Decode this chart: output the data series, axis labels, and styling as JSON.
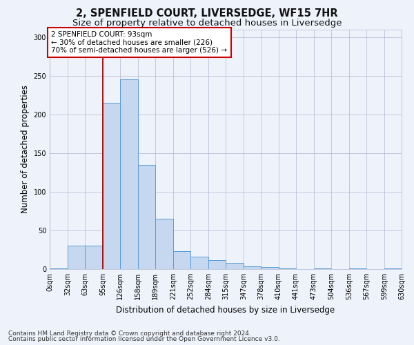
{
  "title": "2, SPENFIELD COURT, LIVERSEDGE, WF15 7HR",
  "subtitle": "Size of property relative to detached houses in Liversedge",
  "xlabel": "Distribution of detached houses by size in Liversedge",
  "ylabel": "Number of detached properties",
  "bins": [
    0,
    32,
    63,
    95,
    126,
    158,
    189,
    221,
    252,
    284,
    315,
    347,
    378,
    410,
    441,
    473,
    504,
    536,
    567,
    599,
    630
  ],
  "values": [
    1,
    30,
    30,
    215,
    245,
    135,
    65,
    23,
    16,
    12,
    8,
    4,
    3,
    1,
    0,
    1,
    0,
    1,
    0,
    1
  ],
  "bar_color": "#c5d8f0",
  "bar_edge_color": "#5b9bd5",
  "vline_x": 95,
  "vline_color": "#aa0000",
  "annotation_text": "2 SPENFIELD COURT: 93sqm\n← 30% of detached houses are smaller (226)\n70% of semi-detached houses are larger (526) →",
  "annotation_box_color": "white",
  "annotation_box_edge": "#cc0000",
  "ylim": [
    0,
    310
  ],
  "yticks": [
    0,
    50,
    100,
    150,
    200,
    250,
    300
  ],
  "tick_labels": [
    "0sqm",
    "32sqm",
    "63sqm",
    "95sqm",
    "126sqm",
    "158sqm",
    "189sqm",
    "221sqm",
    "252sqm",
    "284sqm",
    "315sqm",
    "347sqm",
    "378sqm",
    "410sqm",
    "441sqm",
    "473sqm",
    "504sqm",
    "536sqm",
    "567sqm",
    "599sqm",
    "630sqm"
  ],
  "footer1": "Contains HM Land Registry data © Crown copyright and database right 2024.",
  "footer2": "Contains public sector information licensed under the Open Government Licence v3.0.",
  "bg_color": "#eef2fb",
  "grid_color": "#b0b8d0",
  "title_fontsize": 10.5,
  "subtitle_fontsize": 9.5,
  "axis_label_fontsize": 8.5,
  "tick_fontsize": 7,
  "footer_fontsize": 6.5,
  "annotation_fontsize": 7.5
}
